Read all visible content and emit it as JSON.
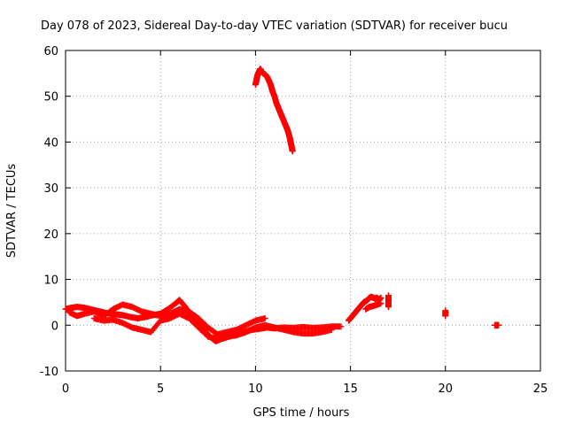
{
  "chart_data": {
    "type": "scatter",
    "title": "Day 078 of 2023, Sidereal Day-to-day VTEC variation (SDTVAR) for receiver bucu",
    "xlabel": "GPS time / hours",
    "ylabel": "SDTVAR / TECUs",
    "xlim": [
      0,
      25
    ],
    "ylim": [
      -10,
      60
    ],
    "xticks": [
      "0",
      "5",
      "10",
      "15",
      "20",
      "25"
    ],
    "yticks": [
      "-10",
      "0",
      "10",
      "20",
      "30",
      "40",
      "50",
      "60"
    ],
    "xtick_values": [
      0,
      5,
      10,
      15,
      20,
      25
    ],
    "ytick_values": [
      -10,
      0,
      10,
      20,
      30,
      40,
      50,
      60
    ],
    "grid": true,
    "marker": "plus",
    "color": "#ff0000",
    "series": [
      {
        "name": "SDTVAR",
        "segments": [
          {
            "x": [
              0.0,
              0.3,
              0.6,
              1.0,
              1.4,
              1.8,
              2.2,
              2.6,
              3.0,
              3.4,
              3.8,
              4.2,
              4.6,
              5.0,
              5.4,
              5.8,
              6.0,
              6.3,
              6.6,
              7.0,
              7.3,
              7.6,
              7.9,
              8.2,
              8.6,
              9.0,
              9.4,
              9.8,
              10.2,
              10.6,
              11.0,
              11.5,
              12.0,
              12.5,
              13.0,
              13.5,
              14.0,
              14.5
            ],
            "y": [
              3.5,
              3.8,
              4.0,
              3.8,
              3.4,
              3.0,
              2.6,
              2.4,
              2.2,
              1.8,
              1.5,
              1.8,
              2.2,
              2.5,
              3.5,
              4.8,
              5.5,
              4.0,
              2.0,
              0.5,
              -1.0,
              -2.5,
              -3.5,
              -3.0,
              -2.5,
              -2.0,
              -1.5,
              -1.0,
              -0.8,
              -0.5,
              -0.7,
              -0.5,
              -0.6,
              -0.4,
              -0.6,
              -0.5,
              -0.3,
              -0.3
            ]
          },
          {
            "x": [
              0.2,
              0.6,
              1.0,
              1.5,
              2.0,
              2.5,
              3.0,
              3.5,
              4.0,
              4.5,
              5.0,
              5.5,
              6.0,
              6.5,
              7.0,
              7.5,
              8.0,
              8.5,
              9.0,
              9.5,
              10.0,
              10.5
            ],
            "y": [
              2.8,
              2.0,
              2.5,
              3.0,
              2.0,
              3.5,
              4.5,
              4.0,
              3.0,
              2.5,
              2.0,
              2.5,
              3.5,
              3.0,
              1.5,
              -0.5,
              -2.0,
              -1.5,
              -1.0,
              0.0,
              1.0,
              1.5
            ]
          },
          {
            "x": [
              1.5,
              2.0,
              2.5,
              3.0,
              3.5,
              4.0,
              4.5,
              5.0,
              5.5,
              6.0,
              6.5,
              7.0,
              7.5,
              8.0,
              8.5,
              9.0,
              9.5,
              10.0,
              10.5,
              11.0,
              11.5,
              12.0,
              12.5,
              13.0,
              13.5,
              14.0
            ],
            "y": [
              1.5,
              1.0,
              1.2,
              0.5,
              -0.5,
              -1.0,
              -1.5,
              1.0,
              1.5,
              2.5,
              1.5,
              -0.5,
              -2.5,
              -3.0,
              -2.5,
              -2.2,
              -1.5,
              -0.5,
              0.0,
              -0.5,
              -1.0,
              -1.5,
              -1.8,
              -1.8,
              -1.5,
              -1.0
            ]
          },
          {
            "x": [
              10.0,
              10.05,
              10.1,
              10.15,
              10.2,
              10.25,
              10.3,
              10.4,
              10.5,
              10.6,
              10.7,
              10.8,
              10.9,
              11.0,
              11.1,
              11.2,
              11.3,
              11.4,
              11.5,
              11.6,
              11.7,
              11.8,
              11.85,
              11.9,
              11.95
            ],
            "y": [
              52.5,
              53.5,
              54.5,
              55.0,
              55.5,
              56.0,
              55.5,
              55.0,
              54.8,
              54.3,
              53.5,
              52.5,
              51.0,
              50.0,
              48.5,
              47.5,
              46.5,
              45.5,
              44.5,
              43.5,
              42.5,
              41.0,
              40.0,
              39.0,
              38.0
            ]
          },
          {
            "x": [
              14.9,
              15.0,
              15.1,
              15.2,
              15.3,
              15.4,
              15.5,
              15.6,
              15.7,
              15.8,
              15.9,
              16.0,
              16.1,
              16.2,
              16.3,
              16.4,
              16.5,
              16.6
            ],
            "y": [
              1.0,
              1.5,
              2.0,
              2.5,
              3.0,
              3.5,
              4.0,
              4.5,
              5.0,
              5.2,
              5.5,
              6.0,
              6.2,
              6.0,
              5.8,
              6.0,
              5.5,
              6.0
            ]
          },
          {
            "x": [
              15.8,
              16.0,
              16.2,
              16.4,
              16.6
            ],
            "y": [
              3.5,
              4.0,
              4.2,
              4.5,
              4.8
            ]
          },
          {
            "x": [
              17.0,
              17.0,
              17.0
            ],
            "y": [
              4.0,
              5.0,
              6.5
            ]
          },
          {
            "x": [
              20.0,
              20.0
            ],
            "y": [
              2.0,
              3.2
            ]
          },
          {
            "x": [
              22.6,
              22.7,
              22.8
            ],
            "y": [
              0.0,
              0.0,
              0.0
            ]
          }
        ]
      }
    ]
  }
}
